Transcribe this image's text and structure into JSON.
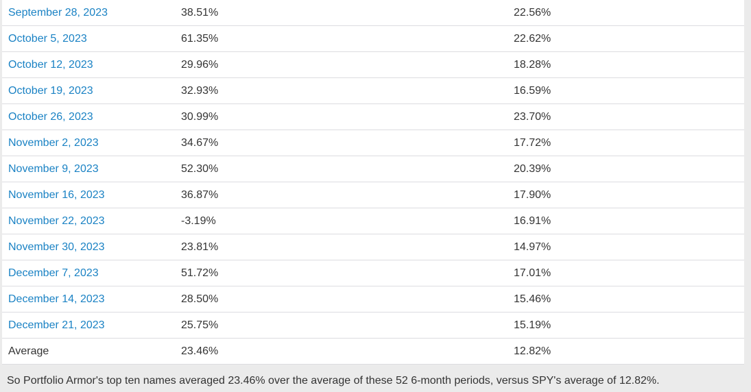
{
  "colors": {
    "page_background": "#ebebeb",
    "table_background": "#ffffff",
    "row_border": "#dcdce0",
    "link": "#1a82c4",
    "text": "#333333"
  },
  "table": {
    "rows": [
      {
        "date": "September 28, 2023",
        "top_ten": "38.51%",
        "spy": "22.56%",
        "link": true
      },
      {
        "date": "October 5, 2023",
        "top_ten": "61.35%",
        "spy": "22.62%",
        "link": true
      },
      {
        "date": "October 12, 2023",
        "top_ten": "29.96%",
        "spy": "18.28%",
        "link": true
      },
      {
        "date": "October 19, 2023",
        "top_ten": "32.93%",
        "spy": "16.59%",
        "link": true
      },
      {
        "date": "October 26, 2023",
        "top_ten": "30.99%",
        "spy": "23.70%",
        "link": true
      },
      {
        "date": "November 2, 2023",
        "top_ten": "34.67%",
        "spy": "17.72%",
        "link": true
      },
      {
        "date": "November 9, 2023",
        "top_ten": "52.30%",
        "spy": "20.39%",
        "link": true
      },
      {
        "date": "November 16, 2023",
        "top_ten": "36.87%",
        "spy": "17.90%",
        "link": true
      },
      {
        "date": "November 22, 2023",
        "top_ten": "-3.19%",
        "spy": "16.91%",
        "link": true
      },
      {
        "date": "November 30, 2023",
        "top_ten": "23.81%",
        "spy": "14.97%",
        "link": true
      },
      {
        "date": "December 7, 2023",
        "top_ten": "51.72%",
        "spy": "17.01%",
        "link": true
      },
      {
        "date": "December 14, 2023",
        "top_ten": "28.50%",
        "spy": "15.46%",
        "link": true
      },
      {
        "date": "December 21, 2023",
        "top_ten": "25.75%",
        "spy": "15.19%",
        "link": true
      },
      {
        "date": "Average",
        "top_ten": "23.46%",
        "spy": "12.82%",
        "link": false
      }
    ]
  },
  "footer": {
    "text": "So Portfolio Armor's top ten names averaged 23.46% over the average of these 52 6-month periods, versus SPY's average of 12.82%."
  }
}
